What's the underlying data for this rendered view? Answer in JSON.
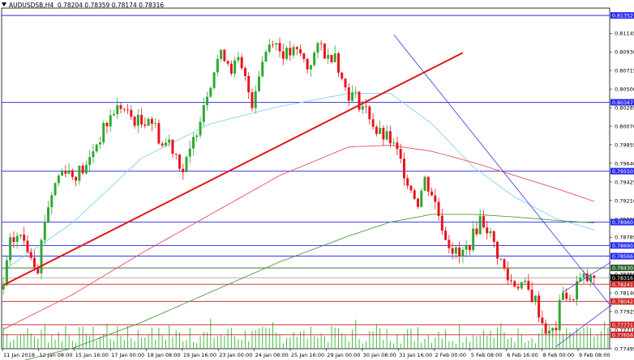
{
  "header": {
    "symbol": "AUDUSDSB,H4",
    "ohlc": "0.78204 0.78359 0.78174 0.78316"
  },
  "colors": {
    "background": "#ffffff",
    "bull_candle": "#2fa82f",
    "bear_candle": "#e8141c",
    "ma_fast": "#7fd3f0",
    "ma_mid": "#e8505a",
    "ma_slow": "#4e9a43",
    "hline_blue": "#2a2af0",
    "hline_red": "#d02828",
    "hline_darkgreen": "#2d5e2d",
    "trend_red": "#e01818",
    "trend_blue": "#3a3ae0",
    "volume": "#48b848",
    "axis_text": "#000000"
  },
  "chart_data": {
    "type": "candlestick",
    "symbol": "AUDUSDSB",
    "timeframe": "H4",
    "ylim": [
      0.77495,
      0.814
    ],
    "price_ticks": [
      "0.81145",
      "0.80930",
      "0.80715",
      "0.80500",
      "0.80285",
      "0.80070",
      "0.79855",
      "0.79640",
      "0.79425",
      "0.79210",
      "0.78995",
      "0.78785",
      "0.78570",
      "0.78355",
      "0.78140",
      "0.77925",
      "0.77710",
      "0.77495"
    ],
    "time_ticks": [
      "11 Jan 2018",
      "12 Jan 08:00",
      "15 Jan 16:00",
      "17 Jan 00:00",
      "18 Jan 08:00",
      "19 Jan 16:00",
      "23 Jan 00:00",
      "24 Jan 08:00",
      "25 Jan 16:00",
      "29 Jan 00:00",
      "30 Jan 08:00",
      "31 Jan 16:00",
      "2 Feb 00:00",
      "5 Feb 08:00",
      "6 Feb 16:00",
      "8 Feb 00:00",
      "9 Feb 08:00"
    ],
    "horizontal_levels": [
      {
        "label": "0.81352",
        "price": 0.81352,
        "style": "blue"
      },
      {
        "label": "0.80347",
        "price": 0.80347,
        "style": "blue"
      },
      {
        "label": "0.79550",
        "price": 0.7955,
        "style": "blue"
      },
      {
        "label": "0.78960",
        "price": 0.7896,
        "style": "blue"
      },
      {
        "label": "0.78690",
        "price": 0.7869,
        "style": "blue"
      },
      {
        "label": "0.78566",
        "price": 0.78566,
        "style": "blue"
      },
      {
        "label": "0.78430",
        "price": 0.7843,
        "style": "darkgreen"
      },
      {
        "label": "0.78316",
        "price": 0.78316,
        "style": "current"
      },
      {
        "label": "0.78241",
        "price": 0.78241,
        "style": "red"
      },
      {
        "label": "0.78042",
        "price": 0.78042,
        "style": "red"
      },
      {
        "label": "0.77771",
        "price": 0.77771,
        "style": "red"
      },
      {
        "label": "0.77656",
        "price": 0.77656,
        "style": "red"
      }
    ],
    "close_anchors": [
      [
        0,
        0.7822
      ],
      [
        2,
        0.787
      ],
      [
        4,
        0.788
      ],
      [
        6,
        0.7875
      ],
      [
        8,
        0.786
      ],
      [
        10,
        0.7845
      ],
      [
        12,
        0.79
      ],
      [
        14,
        0.793
      ],
      [
        16,
        0.795
      ],
      [
        18,
        0.796
      ],
      [
        20,
        0.795
      ],
      [
        22,
        0.7955
      ],
      [
        24,
        0.7958
      ],
      [
        26,
        0.798
      ],
      [
        28,
        0.7995
      ],
      [
        30,
        0.801
      ],
      [
        32,
        0.8025
      ],
      [
        34,
        0.803
      ],
      [
        36,
        0.802
      ],
      [
        38,
        0.8015
      ],
      [
        40,
        0.801
      ],
      [
        42,
        0.802
      ],
      [
        44,
        0.8005
      ],
      [
        46,
        0.7985
      ],
      [
        48,
        0.799
      ],
      [
        50,
        0.7975
      ],
      [
        52,
        0.7955
      ],
      [
        54,
        0.7975
      ],
      [
        56,
        0.8005
      ],
      [
        58,
        0.8035
      ],
      [
        60,
        0.806
      ],
      [
        62,
        0.8085
      ],
      [
        64,
        0.809
      ],
      [
        66,
        0.8075
      ],
      [
        68,
        0.808
      ],
      [
        70,
        0.806
      ],
      [
        72,
        0.8035
      ],
      [
        74,
        0.807
      ],
      [
        76,
        0.8095
      ],
      [
        78,
        0.811
      ],
      [
        80,
        0.8095
      ],
      [
        82,
        0.809
      ],
      [
        84,
        0.8092
      ],
      [
        86,
        0.809
      ],
      [
        88,
        0.8075
      ],
      [
        90,
        0.809
      ],
      [
        92,
        0.81
      ],
      [
        94,
        0.8085
      ],
      [
        96,
        0.8095
      ],
      [
        98,
        0.806
      ],
      [
        100,
        0.8045
      ],
      [
        102,
        0.804
      ],
      [
        104,
        0.803
      ],
      [
        106,
        0.802
      ],
      [
        108,
        0.8
      ],
      [
        110,
        0.7995
      ],
      [
        112,
        0.799
      ],
      [
        114,
        0.7975
      ],
      [
        116,
        0.7955
      ],
      [
        118,
        0.7935
      ],
      [
        120,
        0.792
      ],
      [
        122,
        0.7945
      ],
      [
        124,
        0.793
      ],
      [
        126,
        0.7905
      ],
      [
        128,
        0.788
      ],
      [
        130,
        0.7865
      ],
      [
        132,
        0.7855
      ],
      [
        134,
        0.7865
      ],
      [
        136,
        0.788
      ],
      [
        138,
        0.79
      ],
      [
        140,
        0.789
      ],
      [
        142,
        0.787
      ],
      [
        144,
        0.785
      ],
      [
        146,
        0.783
      ],
      [
        148,
        0.7825
      ],
      [
        150,
        0.7825
      ],
      [
        152,
        0.7815
      ],
      [
        154,
        0.7805
      ],
      [
        156,
        0.778
      ],
      [
        158,
        0.7765
      ],
      [
        160,
        0.7775
      ],
      [
        162,
        0.782
      ],
      [
        164,
        0.78
      ],
      [
        166,
        0.7825
      ],
      [
        168,
        0.783
      ],
      [
        170,
        0.7828
      ],
      [
        171,
        0.78316
      ]
    ],
    "moving_averages": [
      {
        "anchors": [
          [
            0,
            0.784
          ],
          [
            20,
            0.7895
          ],
          [
            40,
            0.797
          ],
          [
            60,
            0.801
          ],
          [
            80,
            0.803
          ],
          [
            100,
            0.8045
          ],
          [
            112,
            0.8045
          ],
          [
            124,
            0.801
          ],
          [
            136,
            0.796
          ],
          [
            148,
            0.7925
          ],
          [
            160,
            0.79
          ],
          [
            171,
            0.7887
          ]
        ],
        "color_key": "ma_fast"
      },
      {
        "anchors": [
          [
            0,
            0.7772
          ],
          [
            20,
            0.7812
          ],
          [
            40,
            0.786
          ],
          [
            60,
            0.7905
          ],
          [
            80,
            0.795
          ],
          [
            100,
            0.7983
          ],
          [
            112,
            0.7985
          ],
          [
            124,
            0.7978
          ],
          [
            136,
            0.7965
          ],
          [
            148,
            0.795
          ],
          [
            160,
            0.7935
          ],
          [
            171,
            0.792
          ]
        ],
        "color_key": "ma_mid"
      },
      {
        "anchors": [
          [
            0,
            0.773
          ],
          [
            20,
            0.775
          ],
          [
            40,
            0.778
          ],
          [
            60,
            0.7815
          ],
          [
            80,
            0.785
          ],
          [
            100,
            0.788
          ],
          [
            112,
            0.7896
          ],
          [
            124,
            0.7905
          ],
          [
            136,
            0.7905
          ],
          [
            148,
            0.7902
          ],
          [
            160,
            0.7898
          ],
          [
            171,
            0.7895
          ]
        ],
        "color_key": "ma_slow"
      }
    ],
    "trendlines": [
      {
        "from": [
          0,
          0.7823
        ],
        "to": [
          133,
          0.8092
        ],
        "color_key": "trend_red",
        "width": 2
      },
      {
        "from": [
          113,
          0.8113
        ],
        "to": [
          176,
          0.7798
        ],
        "color_key": "trend_blue",
        "width": 0.8
      },
      {
        "from": [
          160,
          0.7752
        ],
        "to": [
          176,
          0.78
        ],
        "color_key": "trend_blue",
        "width": 0.8
      },
      {
        "from": [
          162,
          0.7815
        ],
        "to": [
          176,
          0.785
        ],
        "color_key": "trend_blue",
        "width": 0.8
      }
    ],
    "grid": false,
    "legend": "none"
  }
}
